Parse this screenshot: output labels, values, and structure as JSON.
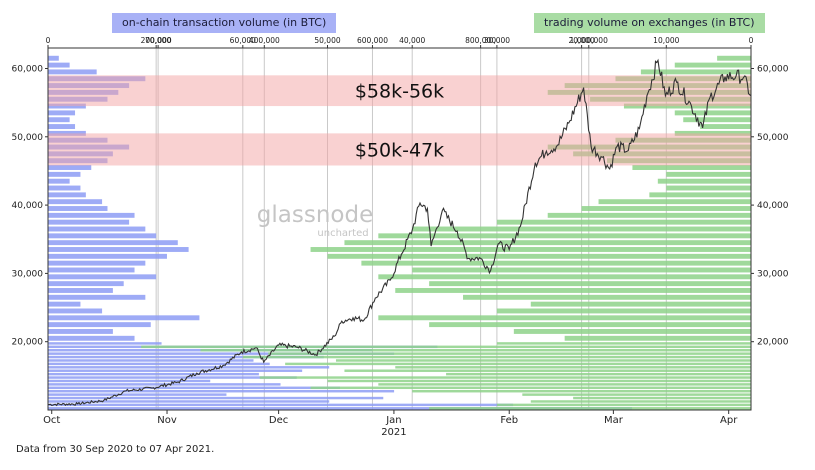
{
  "chart_data": {
    "type": "line",
    "legend": {
      "left": "on-chain transaction volume (in BTC)",
      "right": "trading volume on exchanges (in BTC)"
    },
    "footnote": "Data from 30 Sep 2020 to 07 Apr 2021.",
    "watermark": [
      "glassnode",
      "uncharted"
    ],
    "colors": {
      "price_line": "#333333",
      "onchain_bars": "#8d9cf5",
      "exchange_bars": "#8ed28a",
      "zone_fill": "#f4a3a3",
      "legend_left_bg": "#a8b1f6",
      "legend_right_bg": "#a9dca4"
    },
    "x_axis": {
      "type": "date",
      "range": [
        "2020-09-30",
        "2021-04-07"
      ],
      "ticks": [
        {
          "date": "2020-10-01",
          "label": "Oct"
        },
        {
          "date": "2020-11-01",
          "label": "Nov"
        },
        {
          "date": "2020-12-01",
          "label": "Dec"
        },
        {
          "date": "2021-01-01",
          "label": "Jan",
          "sublabel": "2021"
        },
        {
          "date": "2021-02-01",
          "label": "Feb"
        },
        {
          "date": "2021-03-01",
          "label": "Mar"
        },
        {
          "date": "2021-04-01",
          "label": "Apr"
        }
      ]
    },
    "y_axis": {
      "range": [
        10000,
        63000
      ],
      "ticks": [
        20000,
        30000,
        40000,
        50000,
        60000
      ],
      "tick_labels": [
        "20,000",
        "30,000",
        "40,000",
        "50,000",
        "60,000"
      ]
    },
    "top_axis_left": {
      "range": [
        0,
        1300000
      ],
      "ticks": [
        0,
        200000,
        400000,
        600000,
        800000,
        1000000
      ],
      "tick_labels": [
        "0",
        "200,000",
        "400,000",
        "600,000",
        "800,000",
        "1,000,000"
      ]
    },
    "top_axis_right": {
      "range": [
        0,
        83000
      ],
      "ticks": [
        70000,
        60000,
        50000,
        40000,
        30000,
        20000,
        10000,
        0
      ],
      "tick_labels": [
        "70,000",
        "60,000",
        "50,000",
        "40,000",
        "30,000",
        "20,000",
        "10,000",
        "0"
      ]
    },
    "zones": [
      {
        "label": "$58k-56k",
        "low": 54500,
        "high": 59000
      },
      {
        "label": "$50k-47k",
        "low": 45800,
        "high": 50500
      }
    ],
    "price_series": [
      [
        "2020-09-30",
        10800
      ],
      [
        "2020-10-08",
        10900
      ],
      [
        "2020-10-15",
        11400
      ],
      [
        "2020-10-21",
        12800
      ],
      [
        "2020-10-28",
        13200
      ],
      [
        "2020-11-04",
        14100
      ],
      [
        "2020-11-09",
        15400
      ],
      [
        "2020-11-16",
        16500
      ],
      [
        "2020-11-21",
        18500
      ],
      [
        "2020-11-25",
        19100
      ],
      [
        "2020-11-27",
        17000
      ],
      [
        "2020-12-01",
        19500
      ],
      [
        "2020-12-06",
        19200
      ],
      [
        "2020-12-11",
        18100
      ],
      [
        "2020-12-16",
        20800
      ],
      [
        "2020-12-18",
        23000
      ],
      [
        "2020-12-21",
        23500
      ],
      [
        "2020-12-24",
        23200
      ],
      [
        "2020-12-27",
        26400
      ],
      [
        "2020-12-31",
        29000
      ],
      [
        "2021-01-03",
        32800
      ],
      [
        "2021-01-06",
        36500
      ],
      [
        "2021-01-08",
        40300
      ],
      [
        "2021-01-10",
        39500
      ],
      [
        "2021-01-11",
        34000
      ],
      [
        "2021-01-14",
        39200
      ],
      [
        "2021-01-18",
        36200
      ],
      [
        "2021-01-21",
        32200
      ],
      [
        "2021-01-24",
        32300
      ],
      [
        "2021-01-27",
        30400
      ],
      [
        "2021-01-29",
        34300
      ],
      [
        "2021-02-01",
        33500
      ],
      [
        "2021-02-04",
        36900
      ],
      [
        "2021-02-08",
        46200
      ],
      [
        "2021-02-11",
        47900
      ],
      [
        "2021-02-14",
        48800
      ],
      [
        "2021-02-17",
        52000
      ],
      [
        "2021-02-21",
        57200
      ],
      [
        "2021-02-23",
        48600
      ],
      [
        "2021-02-26",
        47000
      ],
      [
        "2021-02-28",
        45300
      ],
      [
        "2021-03-02",
        48600
      ],
      [
        "2021-03-05",
        48000
      ],
      [
        "2021-03-08",
        51200
      ],
      [
        "2021-03-10",
        56000
      ],
      [
        "2021-03-13",
        61200
      ],
      [
        "2021-03-15",
        56000
      ],
      [
        "2021-03-18",
        58000
      ],
      [
        "2021-03-22",
        54500
      ],
      [
        "2021-03-25",
        51300
      ],
      [
        "2021-03-27",
        55800
      ],
      [
        "2021-03-31",
        58800
      ],
      [
        "2021-04-03",
        58900
      ],
      [
        "2021-04-05",
        58700
      ],
      [
        "2021-04-07",
        56000
      ]
    ],
    "onchain_volume_profile": [
      [
        10250,
        1080000
      ],
      [
        10750,
        860000
      ],
      [
        11250,
        520000
      ],
      [
        11750,
        620000
      ],
      [
        12250,
        330000
      ],
      [
        12750,
        640000
      ],
      [
        13250,
        540000
      ],
      [
        13750,
        430000
      ],
      [
        14250,
        300000
      ],
      [
        14750,
        460000
      ],
      [
        15250,
        390000
      ],
      [
        15750,
        470000
      ],
      [
        16250,
        520000
      ],
      [
        16750,
        410000
      ],
      [
        17250,
        380000
      ],
      [
        17750,
        510000
      ],
      [
        18250,
        640000
      ],
      [
        18750,
        600000
      ],
      [
        19250,
        720000
      ],
      [
        19750,
        210000
      ],
      [
        20500,
        160000
      ],
      [
        21500,
        120000
      ],
      [
        22500,
        190000
      ],
      [
        23500,
        280000
      ],
      [
        24500,
        100000
      ],
      [
        25500,
        60000
      ],
      [
        26500,
        180000
      ],
      [
        27500,
        120000
      ],
      [
        28500,
        140000
      ],
      [
        29500,
        200000
      ],
      [
        30500,
        160000
      ],
      [
        31500,
        180000
      ],
      [
        32500,
        220000
      ],
      [
        33500,
        260000
      ],
      [
        34500,
        240000
      ],
      [
        35500,
        200000
      ],
      [
        36500,
        180000
      ],
      [
        37500,
        150000
      ],
      [
        38500,
        160000
      ],
      [
        39500,
        110000
      ],
      [
        40500,
        100000
      ],
      [
        41500,
        70000
      ],
      [
        42500,
        60000
      ],
      [
        43500,
        40000
      ],
      [
        44500,
        60000
      ],
      [
        45500,
        80000
      ],
      [
        46500,
        110000
      ],
      [
        47500,
        120000
      ],
      [
        48500,
        150000
      ],
      [
        49500,
        110000
      ],
      [
        50500,
        70000
      ],
      [
        51500,
        50000
      ],
      [
        52500,
        40000
      ],
      [
        53500,
        50000
      ],
      [
        54500,
        70000
      ],
      [
        55500,
        110000
      ],
      [
        56500,
        130000
      ],
      [
        57500,
        150000
      ],
      [
        58500,
        180000
      ],
      [
        59500,
        90000
      ],
      [
        60500,
        40000
      ],
      [
        61500,
        20000
      ]
    ],
    "exchange_volume_profile": [
      [
        10250,
        38000
      ],
      [
        10750,
        30000
      ],
      [
        11250,
        26000
      ],
      [
        11750,
        21000
      ],
      [
        12250,
        27000
      ],
      [
        12750,
        40000
      ],
      [
        13250,
        52000
      ],
      [
        13750,
        44000
      ],
      [
        14250,
        50000
      ],
      [
        14750,
        58000
      ],
      [
        15250,
        36000
      ],
      [
        15750,
        48000
      ],
      [
        16250,
        42000
      ],
      [
        16750,
        55000
      ],
      [
        17250,
        49000
      ],
      [
        17750,
        60000
      ],
      [
        18250,
        57000
      ],
      [
        18750,
        65000
      ],
      [
        19250,
        72000
      ],
      [
        19750,
        30000
      ],
      [
        20500,
        22000
      ],
      [
        21500,
        28000
      ],
      [
        22500,
        38000
      ],
      [
        23500,
        44000
      ],
      [
        24500,
        30000
      ],
      [
        25500,
        26000
      ],
      [
        26500,
        34000
      ],
      [
        27500,
        42000
      ],
      [
        28500,
        38000
      ],
      [
        29500,
        44000
      ],
      [
        30500,
        40000
      ],
      [
        31500,
        46000
      ],
      [
        32500,
        50000
      ],
      [
        33500,
        52000
      ],
      [
        34500,
        48000
      ],
      [
        35500,
        44000
      ],
      [
        36500,
        40000
      ],
      [
        37500,
        30000
      ],
      [
        38500,
        24000
      ],
      [
        39500,
        20000
      ],
      [
        40500,
        18000
      ],
      [
        41500,
        12000
      ],
      [
        42500,
        10000
      ],
      [
        43500,
        11000
      ],
      [
        44500,
        10000
      ],
      [
        45500,
        14000
      ],
      [
        46500,
        17000
      ],
      [
        47500,
        21000
      ],
      [
        48500,
        24000
      ],
      [
        49500,
        16000
      ],
      [
        50500,
        9000
      ],
      [
        51500,
        6000
      ],
      [
        52500,
        8000
      ],
      [
        53500,
        9000
      ],
      [
        54500,
        15000
      ],
      [
        55500,
        19000
      ],
      [
        56500,
        24000
      ],
      [
        57500,
        22000
      ],
      [
        58500,
        16000
      ],
      [
        59500,
        13000
      ],
      [
        60500,
        9000
      ],
      [
        61500,
        4000
      ]
    ]
  }
}
